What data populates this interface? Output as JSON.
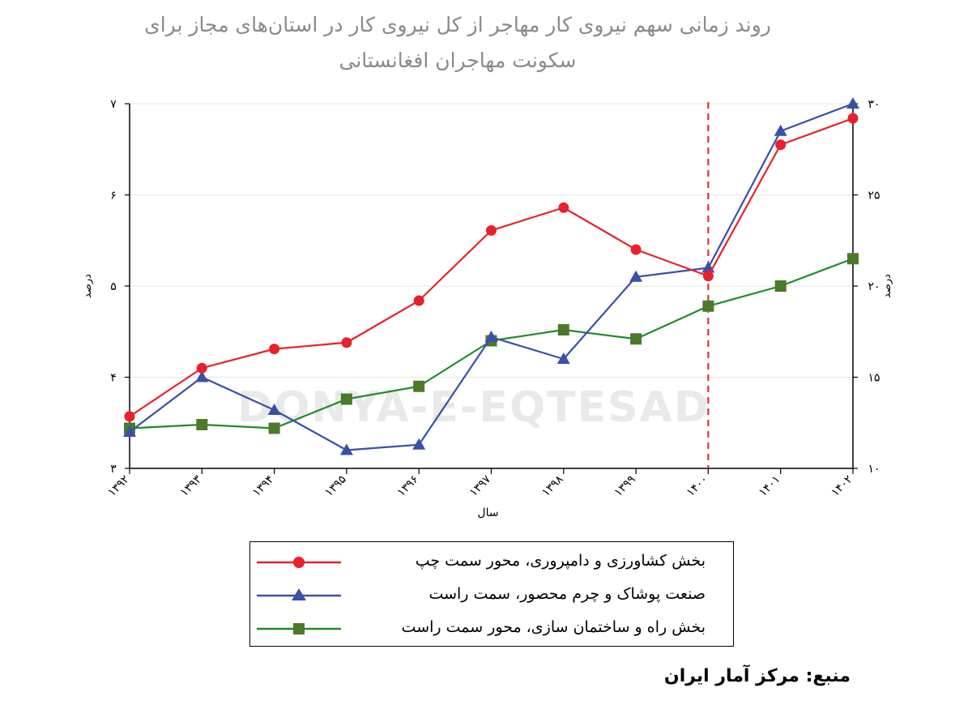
{
  "chart_data": {
    "type": "line",
    "title_lines": [
      "روند زمانی سهم نیروی کار مهاجر از کل نیروی کار در استان‌های مجاز برای",
      "سکونت مهاجران افغانستانی"
    ],
    "watermark": "DONYA-E-EQTESAD",
    "xlabel": "سال",
    "ylabel_left": "درصد",
    "ylabel_right": "درصد",
    "categories": [
      "۱۳۹۲",
      "۱۳۹۳",
      "۱۳۹۴",
      "۱۳۹۵",
      "۱۳۹۶",
      "۱۳۹۷",
      "۱۳۹۸",
      "۱۳۹۹",
      "۱۴۰۰",
      "۱۴۰۱",
      "۱۴۰۲"
    ],
    "left_axis": {
      "ylim": [
        3,
        7
      ],
      "ticks": [
        3,
        4,
        5,
        6,
        7
      ],
      "tick_labels": [
        "۳",
        "۴",
        "۵",
        "۶",
        "۷"
      ]
    },
    "right_axis": {
      "ylim": [
        10,
        30
      ],
      "ticks": [
        10,
        15,
        20,
        25,
        30
      ],
      "tick_labels": [
        "۱۰",
        "۱۵",
        "۲۰",
        "۲۵",
        "۳۰"
      ]
    },
    "reference_line": {
      "category": "۱۴۰۰",
      "color": "#e02020",
      "style": "dashed"
    },
    "grid": "horizontal",
    "series": [
      {
        "name": "بخش کشاورزی و دامپروری، محور سمت چپ",
        "axis": "left",
        "color": "#e8212b",
        "marker": "circle",
        "values": [
          3.57,
          4.1,
          4.31,
          4.38,
          4.84,
          5.61,
          5.86,
          5.4,
          5.11,
          6.55,
          6.84
        ]
      },
      {
        "name": "صنعت پوشاک و چرم محصور، سمت راست",
        "axis": "right",
        "color": "#3a50a8",
        "marker": "triangle",
        "values": [
          12.0,
          15.0,
          13.2,
          11.0,
          11.3,
          17.2,
          16.0,
          20.5,
          21.0,
          28.5,
          30.0
        ]
      },
      {
        "name": "بخش راه و ساختمان سازی، محور سمت راست",
        "axis": "right",
        "color": "#1e8c2a",
        "marker_color": "#4a7a2a",
        "marker": "square",
        "values": [
          12.2,
          12.4,
          12.2,
          13.8,
          14.5,
          17.0,
          17.6,
          17.1,
          18.9,
          20.0,
          21.5
        ]
      }
    ],
    "legend_placement": "bottom-center",
    "source": "منبع: مرکز آمار ایران"
  }
}
